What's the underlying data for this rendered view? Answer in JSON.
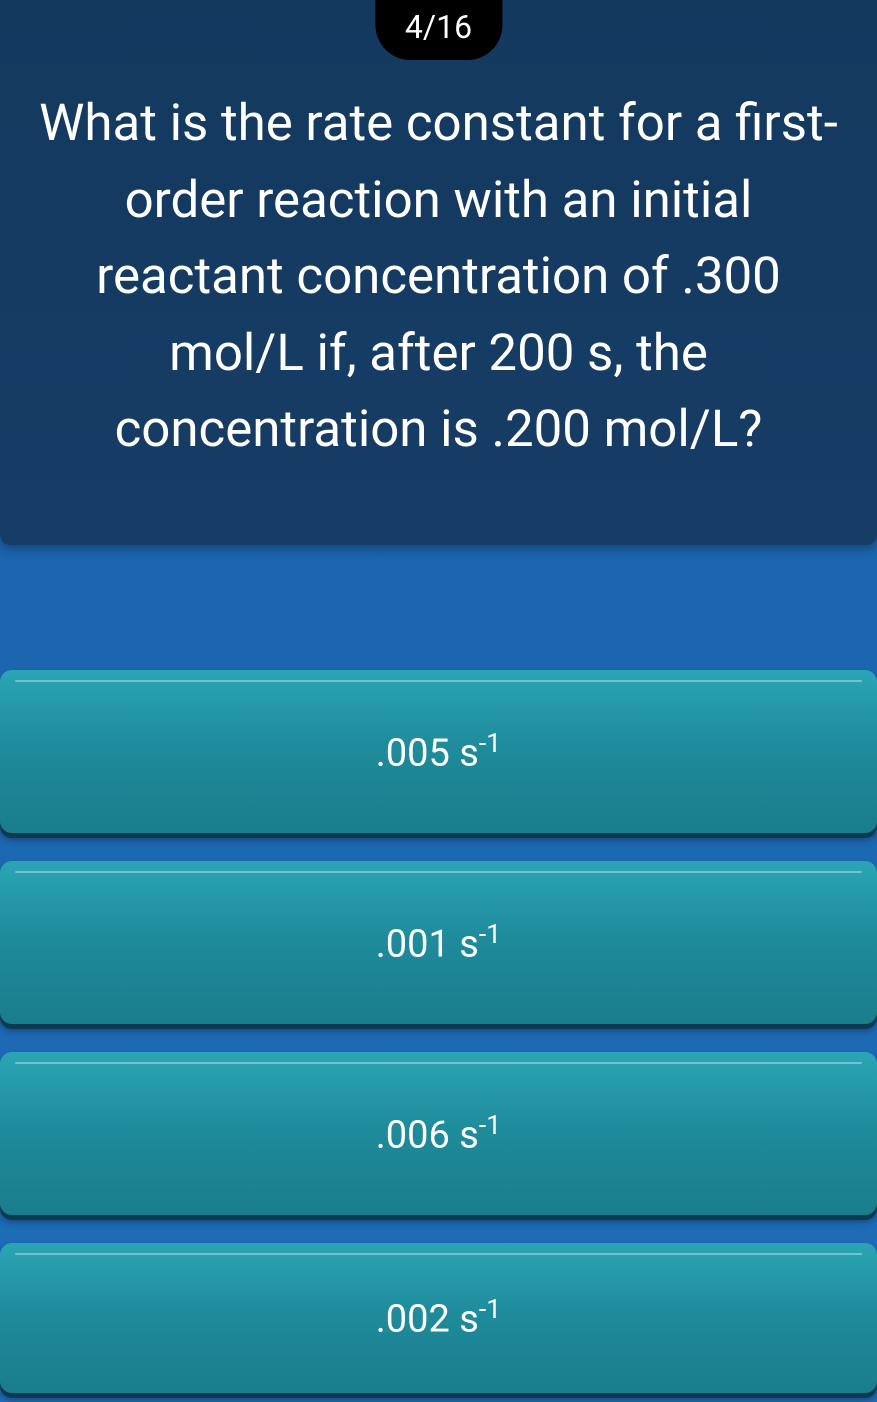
{
  "counter": "4/16",
  "question": "What is the rate constant for a first-order reaction with an initial reactant concentration of .300 mol/L if, after 200 s, the concentration is .200 mol/L?",
  "answers": [
    {
      "value": ".005",
      "unit_base": "s",
      "unit_exp": "-1"
    },
    {
      "value": ".001",
      "unit_base": "s",
      "unit_exp": "-1"
    },
    {
      "value": ".006",
      "unit_base": "s",
      "unit_exp": "-1"
    },
    {
      "value": ".002",
      "unit_base": "s",
      "unit_exp": "-1"
    }
  ],
  "styling": {
    "page_bg_top": "#1a5fa8",
    "page_bg_bottom": "#1e6db8",
    "panel_bg_top": "#14395f",
    "panel_bg_bottom": "#163d66",
    "button_bg_top": "#2aa5b5",
    "button_bg_mid": "#1e8a9a",
    "button_bg_bottom": "#1a7d8c",
    "button_shadow": "#0d3a50",
    "pill_bg": "#000000",
    "text_color": "#ffffff",
    "question_fontsize": 51,
    "answer_fontsize": 38,
    "counter_fontsize": 32,
    "button_height": 163,
    "button_gap": 28,
    "button_radius": 12
  }
}
